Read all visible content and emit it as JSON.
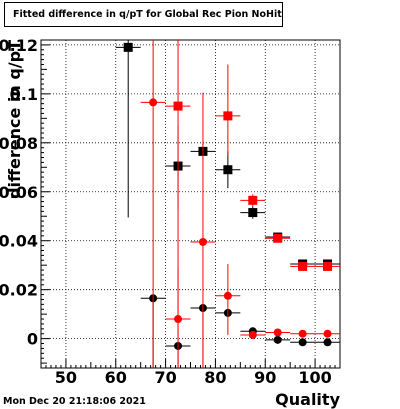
{
  "title": "Fitted difference in q/pT for Global Rec Pion NoHits",
  "timestamp": "Mon Dec 20 21:18:06 2021",
  "colors": {
    "black_series": "#000000",
    "red_series": "#ff0000",
    "background": "#ffffff"
  },
  "chart_data": {
    "type": "scatter",
    "title": "Fitted difference in q/pT for Global Rec Pion NoHits",
    "xlabel": "Quality",
    "ylabel": "difference in q/pT",
    "xlim": [
      45,
      105
    ],
    "ylim": [
      -0.012,
      0.122
    ],
    "xticks": [
      50,
      60,
      70,
      80,
      90,
      100
    ],
    "yticks": [
      0,
      0.02,
      0.04,
      0.06,
      0.08,
      0.1,
      0.12
    ],
    "ytick_labels": [
      "0",
      "0.02",
      "0.04",
      "0.06",
      "0.08",
      "0.1",
      "0.12"
    ],
    "grid": true,
    "series": [
      {
        "marker": "square",
        "color": "#000000",
        "points": [
          {
            "x": 62.5,
            "y": 0.119,
            "yerr_low": 0.0695,
            "yerr_high": 0.003
          },
          {
            "x": 72.5,
            "y": 0.0705,
            "yerr_low": 0.0175,
            "yerr_high": 0.0165
          },
          {
            "x": 77.5,
            "y": 0.0765,
            "yerr_low": 0.0035,
            "yerr_high": 0.0035
          },
          {
            "x": 82.5,
            "y": 0.069,
            "yerr_low": 0.0075,
            "yerr_high": 0.0075
          },
          {
            "x": 87.5,
            "y": 0.0515,
            "yerr_low": 0.0025,
            "yerr_high": 0.0025
          },
          {
            "x": 92.5,
            "y": 0.0415,
            "yerr_low": 0.001,
            "yerr_high": 0.001
          },
          {
            "x": 97.5,
            "y": 0.0305,
            "yerr_low": 0.0005,
            "yerr_high": 0.0005
          },
          {
            "x": 102.5,
            "y": 0.0305,
            "yerr_low": 0.0005,
            "yerr_high": 0.0005
          }
        ]
      },
      {
        "marker": "square",
        "color": "#ff0000",
        "points": [
          {
            "x": 72.5,
            "y": 0.095,
            "yerr_low": 0.107,
            "yerr_high": 0.027
          },
          {
            "x": 82.5,
            "y": 0.091,
            "yerr_low": 0.0165,
            "yerr_high": 0.021
          },
          {
            "x": 87.5,
            "y": 0.0565,
            "yerr_low": 0.0025,
            "yerr_high": 0.0025
          },
          {
            "x": 92.5,
            "y": 0.041,
            "yerr_low": 0.001,
            "yerr_high": 0.001
          },
          {
            "x": 97.5,
            "y": 0.0295,
            "yerr_low": 0.0005,
            "yerr_high": 0.0005
          },
          {
            "x": 102.5,
            "y": 0.0295,
            "yerr_low": 0.0005,
            "yerr_high": 0.0005
          }
        ]
      },
      {
        "marker": "circle",
        "color": "#000000",
        "points": [
          {
            "x": 67.5,
            "y": 0.0165,
            "yerr_low": 0.0285,
            "yerr_high": 0.0
          },
          {
            "x": 72.5,
            "y": -0.003,
            "yerr_low": 0.009,
            "yerr_high": 0.0
          },
          {
            "x": 77.5,
            "y": 0.0125,
            "yerr_low": 0.0245,
            "yerr_high": 0.0
          },
          {
            "x": 82.5,
            "y": 0.0105,
            "yerr_low": 0.0,
            "yerr_high": 0.0
          },
          {
            "x": 87.5,
            "y": 0.003,
            "yerr_low": 0.0,
            "yerr_high": 0.0
          },
          {
            "x": 92.5,
            "y": -0.0005,
            "yerr_low": 0.0,
            "yerr_high": 0.0
          },
          {
            "x": 97.5,
            "y": -0.0015,
            "yerr_low": 0.0,
            "yerr_high": 0.0
          },
          {
            "x": 102.5,
            "y": -0.0015,
            "yerr_low": 0.0,
            "yerr_high": 0.0
          }
        ]
      },
      {
        "marker": "circle",
        "color": "#ff0000",
        "points": [
          {
            "x": 67.5,
            "y": 0.0965,
            "yerr_low": 0.1085,
            "yerr_high": 0.0255
          },
          {
            "x": 72.5,
            "y": 0.008,
            "yerr_low": 0.02,
            "yerr_high": 0.021
          },
          {
            "x": 77.5,
            "y": 0.0395,
            "yerr_low": 0.0515,
            "yerr_high": 0.061
          },
          {
            "x": 82.5,
            "y": 0.0175,
            "yerr_low": 0.016,
            "yerr_high": 0.013
          },
          {
            "x": 87.5,
            "y": 0.0015,
            "yerr_low": 0.0,
            "yerr_high": 0.0
          },
          {
            "x": 92.5,
            "y": 0.0025,
            "yerr_low": 0.0,
            "yerr_high": 0.0
          },
          {
            "x": 97.5,
            "y": 0.002,
            "yerr_low": 0.0,
            "yerr_high": 0.0
          },
          {
            "x": 102.5,
            "y": 0.002,
            "yerr_low": 0.0,
            "yerr_high": 0.0
          }
        ]
      }
    ]
  }
}
